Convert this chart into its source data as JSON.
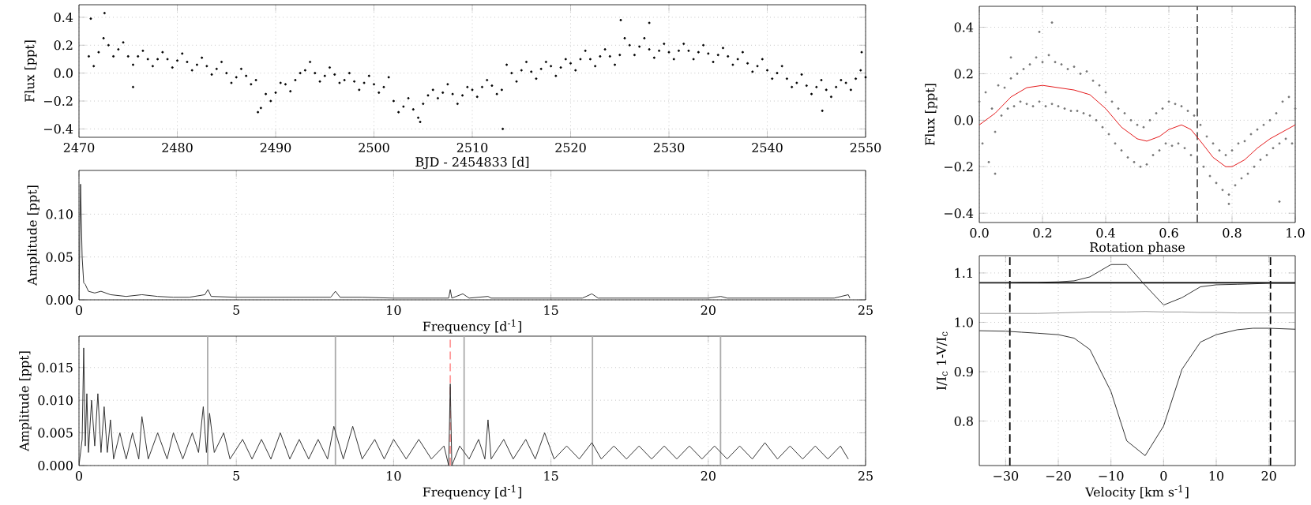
{
  "chart_data": [
    {
      "type": "scatter",
      "xlabel": "BJD - 2454833 [d]",
      "ylabel": "Flux [ppt]",
      "xlim": [
        2470,
        2550
      ],
      "ylim": [
        -0.46,
        0.49
      ],
      "grid": true,
      "marker": "circle",
      "color": "#000000",
      "xticks": [
        2470,
        2480,
        2490,
        2500,
        2510,
        2520,
        2530,
        2540,
        2550
      ],
      "yticks": [
        {
          "value": -0.4,
          "label": "−0.4"
        },
        {
          "value": -0.2,
          "label": "−0.2"
        },
        {
          "value": 0,
          "label": "0.0"
        },
        {
          "value": 0.2,
          "label": "0.2"
        },
        {
          "value": 0.4,
          "label": "0.4"
        }
      ],
      "x": [
        2471,
        2471.5,
        2472,
        2472.5,
        2473,
        2473.5,
        2474,
        2474.5,
        2475,
        2475.5,
        2476,
        2476.5,
        2477,
        2477.5,
        2478,
        2478.5,
        2479,
        2479.5,
        2480,
        2480.5,
        2481,
        2481.5,
        2482,
        2482.5,
        2483,
        2483.5,
        2484,
        2484.5,
        2485,
        2485.5,
        2486,
        2486.5,
        2487,
        2487.5,
        2488,
        2488.5,
        2489,
        2489.5,
        2490,
        2490.5,
        2491,
        2491.5,
        2492,
        2492.5,
        2493,
        2493.5,
        2494,
        2494.5,
        2495,
        2495.5,
        2496,
        2496.5,
        2497,
        2497.5,
        2498,
        2498.5,
        2499,
        2499.5,
        2500,
        2500.5,
        2501,
        2501.5,
        2502,
        2502.5,
        2503,
        2503.5,
        2504,
        2504.5,
        2505,
        2505.5,
        2506,
        2506.5,
        2507,
        2507.5,
        2508,
        2508.5,
        2509,
        2509.5,
        2510,
        2510.5,
        2511,
        2511.5,
        2512,
        2512.5,
        2513,
        2513.5,
        2514,
        2514.5,
        2515,
        2515.5,
        2516,
        2516.5,
        2517,
        2517.5,
        2518,
        2518.5,
        2519,
        2519.5,
        2520,
        2520.5,
        2521,
        2521.5,
        2522,
        2522.5,
        2523,
        2523.5,
        2524,
        2524.5,
        2525,
        2525.5,
        2526,
        2526.5,
        2527,
        2527.5,
        2528,
        2528.5,
        2529,
        2529.5,
        2530,
        2530.5,
        2531,
        2531.5,
        2532,
        2532.5,
        2533,
        2533.5,
        2534,
        2534.5,
        2535,
        2535.5,
        2536,
        2536.5,
        2537,
        2537.5,
        2538,
        2538.5,
        2539,
        2539.5,
        2540,
        2540.5,
        2541,
        2541.5,
        2542,
        2542.5,
        2543,
        2543.5,
        2544,
        2544.5,
        2545,
        2545.5,
        2546,
        2546.5,
        2547,
        2547.5,
        2548,
        2548.5,
        2549,
        2549.5,
        2550,
        2471.2,
        2472.6,
        2488.2,
        2504.7,
        2513.1,
        2525.1,
        2528.0,
        2545.6,
        2549.6,
        2475.5
      ],
      "values": [
        0.12,
        0.05,
        0.15,
        0.25,
        0.2,
        0.12,
        0.17,
        0.22,
        0.12,
        0.06,
        0.12,
        0.16,
        0.1,
        0.05,
        0.1,
        0.15,
        0.1,
        0.04,
        0.09,
        0.14,
        0.08,
        0.02,
        0.06,
        0.11,
        0.05,
        -0.01,
        0.03,
        0.08,
        0.0,
        -0.07,
        -0.03,
        0.03,
        -0.02,
        -0.08,
        -0.05,
        -0.25,
        -0.15,
        -0.2,
        -0.14,
        -0.07,
        -0.08,
        -0.13,
        -0.05,
        0.0,
        0.02,
        0.08,
        0.0,
        -0.06,
        -0.02,
        0.04,
        -0.01,
        -0.07,
        -0.05,
        0.0,
        -0.06,
        -0.12,
        -0.07,
        -0.02,
        -0.08,
        -0.14,
        -0.1,
        -0.03,
        -0.2,
        -0.28,
        -0.24,
        -0.18,
        -0.26,
        -0.32,
        -0.22,
        -0.16,
        -0.12,
        -0.18,
        -0.14,
        -0.08,
        -0.15,
        -0.22,
        -0.16,
        -0.1,
        -0.12,
        -0.17,
        -0.1,
        -0.05,
        -0.09,
        -0.15,
        -0.12,
        0.06,
        0.0,
        -0.06,
        0.02,
        0.08,
        0.01,
        -0.04,
        0.03,
        0.08,
        0.05,
        -0.02,
        0.04,
        0.1,
        0.07,
        0.02,
        0.1,
        0.16,
        0.1,
        0.05,
        0.12,
        0.17,
        0.12,
        0.06,
        0.13,
        0.25,
        0.2,
        0.13,
        0.19,
        0.25,
        0.17,
        0.11,
        0.16,
        0.21,
        0.15,
        0.1,
        0.16,
        0.21,
        0.16,
        0.1,
        0.15,
        0.2,
        0.14,
        0.08,
        0.13,
        0.18,
        0.12,
        0.06,
        0.1,
        0.15,
        0.07,
        0.01,
        0.05,
        0.1,
        0.02,
        -0.04,
        0.0,
        0.05,
        -0.04,
        -0.1,
        -0.07,
        -0.01,
        -0.09,
        -0.15,
        -0.1,
        -0.05,
        -0.12,
        -0.17,
        -0.1,
        -0.05,
        -0.07,
        -0.12,
        -0.04,
        0.02,
        -0.03,
        0.39,
        0.43,
        -0.28,
        -0.35,
        -0.4,
        0.38,
        0.36,
        -0.27,
        0.15,
        -0.1
      ]
    },
    {
      "type": "line",
      "xlabel": "Frequency [d$^{-1}$]",
      "ylabel": "Amplitude [ppt]",
      "xlim": [
        0,
        25
      ],
      "ylim": [
        0,
        0.151
      ],
      "grid": true,
      "color": "#333333",
      "xticks": [
        0,
        5,
        10,
        15,
        20,
        25
      ],
      "yticks": [
        {
          "value": 0,
          "label": "0.00"
        },
        {
          "value": 0.05,
          "label": "0.05"
        },
        {
          "value": 0.1,
          "label": "0.10"
        }
      ],
      "x": [
        0,
        0.05,
        0.1,
        0.15,
        0.2,
        0.3,
        0.5,
        0.7,
        1,
        1.5,
        2,
        2.5,
        3,
        3.5,
        4,
        4.1,
        4.2,
        5,
        6,
        7,
        8,
        8.15,
        8.3,
        9,
        10,
        11,
        11.75,
        11.8,
        11.85,
        12.2,
        12.4,
        13,
        13.1,
        14,
        15,
        16,
        16.3,
        16.5,
        17,
        18,
        19,
        20,
        20.4,
        20.6,
        22,
        24,
        24.45,
        24.5
      ],
      "values": [
        0.0,
        0.135,
        0.05,
        0.02,
        0.018,
        0.01,
        0.008,
        0.01,
        0.006,
        0.004,
        0.006,
        0.004,
        0.003,
        0.003,
        0.006,
        0.012,
        0.004,
        0.003,
        0.003,
        0.003,
        0.003,
        0.01,
        0.003,
        0.003,
        0.002,
        0.002,
        0.002,
        0.012,
        0.002,
        0.007,
        0.002,
        0.004,
        0.002,
        0.002,
        0.002,
        0.002,
        0.007,
        0.002,
        0.002,
        0.002,
        0.002,
        0.002,
        0.004,
        0.002,
        0.002,
        0.002,
        0.006,
        0.002
      ]
    },
    {
      "type": "line",
      "xlabel": "Frequency [d$^{-1}$]",
      "ylabel": "Amplitude [ppt]",
      "xlim": [
        0,
        25
      ],
      "ylim": [
        0,
        0.0198
      ],
      "grid": true,
      "color": "#333333",
      "xticks": [
        0,
        5,
        10,
        15,
        20,
        25
      ],
      "yticks": [
        {
          "value": 0,
          "label": "0.000"
        },
        {
          "value": 0.005,
          "label": "0.005"
        },
        {
          "value": 0.01,
          "label": "0.010"
        },
        {
          "value": 0.015,
          "label": "0.015"
        }
      ],
      "ref_lines": [
        {
          "axis": "x",
          "value": 4.09,
          "color": "#aaaaaa",
          "line_style": "solid"
        },
        {
          "axis": "x",
          "value": 8.15,
          "color": "#aaaaaa",
          "line_style": "solid"
        },
        {
          "axis": "x",
          "value": 12.24,
          "color": "#aaaaaa",
          "line_style": "solid"
        },
        {
          "axis": "x",
          "value": 16.32,
          "color": "#aaaaaa",
          "line_style": "solid"
        },
        {
          "axis": "x",
          "value": 20.39,
          "color": "#aaaaaa",
          "line_style": "solid"
        },
        {
          "axis": "x",
          "value": 11.8,
          "color": "#ff9999",
          "line_style": "dashed"
        }
      ],
      "x": [
        0,
        0.1,
        0.15,
        0.2,
        0.25,
        0.3,
        0.4,
        0.5,
        0.6,
        0.7,
        0.8,
        0.9,
        1.0,
        1.1,
        1.3,
        1.5,
        1.7,
        1.9,
        2.0,
        2.2,
        2.5,
        2.8,
        3.0,
        3.3,
        3.6,
        3.8,
        3.95,
        4.05,
        4.15,
        4.3,
        4.6,
        4.8,
        5.2,
        5.5,
        5.8,
        6.1,
        6.4,
        6.7,
        7.0,
        7.3,
        7.6,
        7.9,
        8.1,
        8.4,
        8.7,
        9.0,
        9.4,
        9.7,
        10.0,
        10.4,
        10.8,
        11.2,
        11.6,
        11.75,
        11.8,
        11.85,
        12.1,
        12.4,
        12.7,
        12.9,
        13.0,
        13.1,
        13.5,
        13.8,
        14.2,
        14.5,
        14.8,
        15.1,
        15.5,
        15.9,
        16.3,
        16.6,
        17.0,
        17.4,
        17.8,
        18.2,
        18.6,
        19.0,
        19.4,
        19.8,
        20.2,
        20.6,
        21.0,
        21.4,
        21.8,
        22.2,
        22.6,
        23.0,
        23.4,
        23.8,
        24.2,
        24.45
      ],
      "values": [
        0.0,
        0.004,
        0.018,
        0.003,
        0.011,
        0.002,
        0.01,
        0.003,
        0.011,
        0.002,
        0.009,
        0.002,
        0.007,
        0.001,
        0.005,
        0.001,
        0.005,
        0.001,
        0.0075,
        0.001,
        0.005,
        0.001,
        0.005,
        0.001,
        0.005,
        0.002,
        0.009,
        0.002,
        0.008,
        0.002,
        0.005,
        0.001,
        0.004,
        0.001,
        0.004,
        0.001,
        0.005,
        0.001,
        0.004,
        0.001,
        0.004,
        0.001,
        0.006,
        0.001,
        0.006,
        0.001,
        0.004,
        0.001,
        0.004,
        0.001,
        0.004,
        0.001,
        0.003,
        0.0,
        0.0125,
        0.0,
        0.003,
        0.001,
        0.004,
        0.001,
        0.007,
        0.001,
        0.004,
        0.001,
        0.004,
        0.001,
        0.005,
        0.001,
        0.003,
        0.001,
        0.0035,
        0.001,
        0.003,
        0.001,
        0.003,
        0.001,
        0.003,
        0.001,
        0.003,
        0.001,
        0.003,
        0.001,
        0.003,
        0.001,
        0.0035,
        0.001,
        0.003,
        0.001,
        0.003,
        0.001,
        0.003,
        0.001
      ]
    },
    {
      "type": "scatter",
      "xlabel": "Rotation phase",
      "ylabel": "Flux [ppt]",
      "xlim": [
        0,
        1
      ],
      "ylim": [
        -0.44,
        0.49
      ],
      "grid": true,
      "marker": "circle",
      "xticks": [
        {
          "value": 0,
          "label": "0.0"
        },
        {
          "value": 0.2,
          "label": "0.2"
        },
        {
          "value": 0.4,
          "label": "0.4"
        },
        {
          "value": 0.6,
          "label": "0.6"
        },
        {
          "value": 0.8,
          "label": "0.8"
        },
        {
          "value": 1,
          "label": "1.0"
        }
      ],
      "yticks": [
        {
          "value": -0.4,
          "label": "−0.4"
        },
        {
          "value": -0.2,
          "label": "−0.2"
        },
        {
          "value": 0,
          "label": "0.0"
        },
        {
          "value": 0.2,
          "label": "0.2"
        },
        {
          "value": 0.4,
          "label": "0.4"
        }
      ],
      "ref_lines": [
        {
          "axis": "x",
          "value": 0.69,
          "color": "#555555",
          "line_style": "dashed"
        }
      ],
      "series": [
        {
          "color": "#777777",
          "x": [
            0,
            0.02,
            0.04,
            0.06,
            0.08,
            0.1,
            0.12,
            0.14,
            0.16,
            0.18,
            0.2,
            0.22,
            0.24,
            0.26,
            0.28,
            0.3,
            0.32,
            0.34,
            0.36,
            0.38,
            0.4,
            0.42,
            0.44,
            0.46,
            0.48,
            0.5,
            0.52,
            0.54,
            0.56,
            0.58,
            0.6,
            0.62,
            0.64,
            0.66,
            0.68,
            0.7,
            0.72,
            0.74,
            0.76,
            0.78,
            0.8,
            0.82,
            0.84,
            0.86,
            0.88,
            0.9,
            0.92,
            0.94,
            0.96,
            0.98,
            1.0,
            0.01,
            0.03,
            0.05,
            0.07,
            0.09,
            0.11,
            0.13,
            0.15,
            0.17,
            0.19,
            0.21,
            0.23,
            0.25,
            0.27,
            0.29,
            0.31,
            0.33,
            0.35,
            0.37,
            0.39,
            0.41,
            0.43,
            0.45,
            0.47,
            0.49,
            0.51,
            0.53,
            0.55,
            0.57,
            0.59,
            0.61,
            0.63,
            0.65,
            0.67,
            0.69,
            0.71,
            0.73,
            0.75,
            0.77,
            0.79,
            0.81,
            0.83,
            0.85,
            0.87,
            0.89,
            0.91,
            0.93,
            0.95,
            0.97,
            0.99,
            0.23,
            0.19,
            0.1,
            0.05,
            0.79,
            0.95
          ],
          "values": [
            0.08,
            0.12,
            0.05,
            0.15,
            0.14,
            0.18,
            0.2,
            0.22,
            0.24,
            0.27,
            0.25,
            0.28,
            0.25,
            0.24,
            0.22,
            0.23,
            0.2,
            0.21,
            0.17,
            0.15,
            0.12,
            0.08,
            0.05,
            0.03,
            0.0,
            -0.02,
            -0.03,
            0.0,
            0.03,
            0.05,
            0.08,
            0.07,
            0.06,
            0.04,
            0.02,
            -0.02,
            -0.07,
            -0.1,
            -0.13,
            -0.15,
            -0.13,
            -0.1,
            -0.09,
            -0.06,
            -0.04,
            -0.02,
            0.0,
            0.03,
            0.08,
            0.1,
            0.05,
            -0.1,
            -0.18,
            -0.05,
            0.02,
            0.05,
            0.06,
            0.08,
            0.07,
            0.06,
            0.08,
            0.06,
            0.07,
            0.06,
            0.05,
            0.04,
            0.04,
            0.03,
            0.02,
            0.0,
            -0.03,
            -0.06,
            -0.1,
            -0.13,
            -0.16,
            -0.18,
            -0.2,
            -0.19,
            -0.15,
            -0.13,
            -0.1,
            -0.11,
            -0.1,
            -0.12,
            -0.15,
            -0.18,
            -0.2,
            -0.24,
            -0.27,
            -0.3,
            -0.32,
            -0.28,
            -0.25,
            -0.23,
            -0.2,
            -0.17,
            -0.15,
            -0.12,
            -0.1,
            -0.08,
            -0.1,
            0.42,
            0.38,
            0.27,
            -0.23,
            -0.36,
            -0.35
          ]
        },
        {
          "type": "line",
          "color": "#e41a1c",
          "marker": "none",
          "x": [
            0,
            0.05,
            0.1,
            0.15,
            0.2,
            0.25,
            0.3,
            0.35,
            0.4,
            0.45,
            0.5,
            0.53,
            0.57,
            0.6,
            0.64,
            0.67,
            0.7,
            0.74,
            0.78,
            0.8,
            0.84,
            0.88,
            0.92,
            0.96,
            1.0
          ],
          "values": [
            -0.02,
            0.03,
            0.1,
            0.14,
            0.15,
            0.14,
            0.13,
            0.11,
            0.05,
            -0.03,
            -0.08,
            -0.09,
            -0.07,
            -0.04,
            -0.02,
            -0.04,
            -0.09,
            -0.16,
            -0.2,
            -0.2,
            -0.17,
            -0.12,
            -0.08,
            -0.05,
            -0.02
          ]
        }
      ]
    },
    {
      "type": "line",
      "xlabel": "Velocity [km s$^{-1}$]",
      "ylabel": "I/I$_{c}$  1-V/I$_{c}$",
      "xlim": [
        -35,
        25
      ],
      "ylim": [
        0.71,
        1.135
      ],
      "grid": true,
      "xticks": [
        {
          "value": -30,
          "label": "−30"
        },
        {
          "value": -20,
          "label": "−20"
        },
        {
          "value": -10,
          "label": "−10"
        },
        0,
        10,
        20
      ],
      "yticks": [
        {
          "value": 0.8,
          "label": "0.8"
        },
        {
          "value": 0.9,
          "label": "0.9"
        },
        {
          "value": 1.0,
          "label": "1.0"
        },
        {
          "value": 1.1,
          "label": "1.1"
        }
      ],
      "ref_lines": [
        {
          "axis": "x",
          "value": -29.2,
          "color": "#000000",
          "line_style": "dashed"
        },
        {
          "axis": "x",
          "value": 20.3,
          "color": "#000000",
          "line_style": "dashed"
        },
        {
          "axis": "y",
          "value": 1.08,
          "color": "#000000",
          "line_style": "solid"
        }
      ],
      "x": [
        -35,
        -30,
        -27,
        -24,
        -20,
        -17,
        -14,
        -10,
        -7,
        -3.5,
        0,
        3.5,
        7,
        10,
        14,
        17,
        20,
        25
      ],
      "series": [
        {
          "color": "#333333",
          "values": [
            0.983,
            0.982,
            0.98,
            0.978,
            0.975,
            0.968,
            0.945,
            0.86,
            0.76,
            0.73,
            0.79,
            0.905,
            0.96,
            0.975,
            0.985,
            0.988,
            0.988,
            0.986
          ]
        },
        {
          "color": "#333333",
          "values": [
            1.08,
            1.08,
            1.081,
            1.081,
            1.082,
            1.084,
            1.092,
            1.117,
            1.117,
            1.075,
            1.035,
            1.05,
            1.072,
            1.076,
            1.077,
            1.078,
            1.079,
            1.079
          ]
        },
        {
          "color": "#999999",
          "values": [
            1.018,
            1.018,
            1.018,
            1.018,
            1.019,
            1.02,
            1.021,
            1.021,
            1.021,
            1.022,
            1.021,
            1.021,
            1.02,
            1.02,
            1.019,
            1.019,
            1.019,
            1.019
          ]
        }
      ]
    }
  ]
}
